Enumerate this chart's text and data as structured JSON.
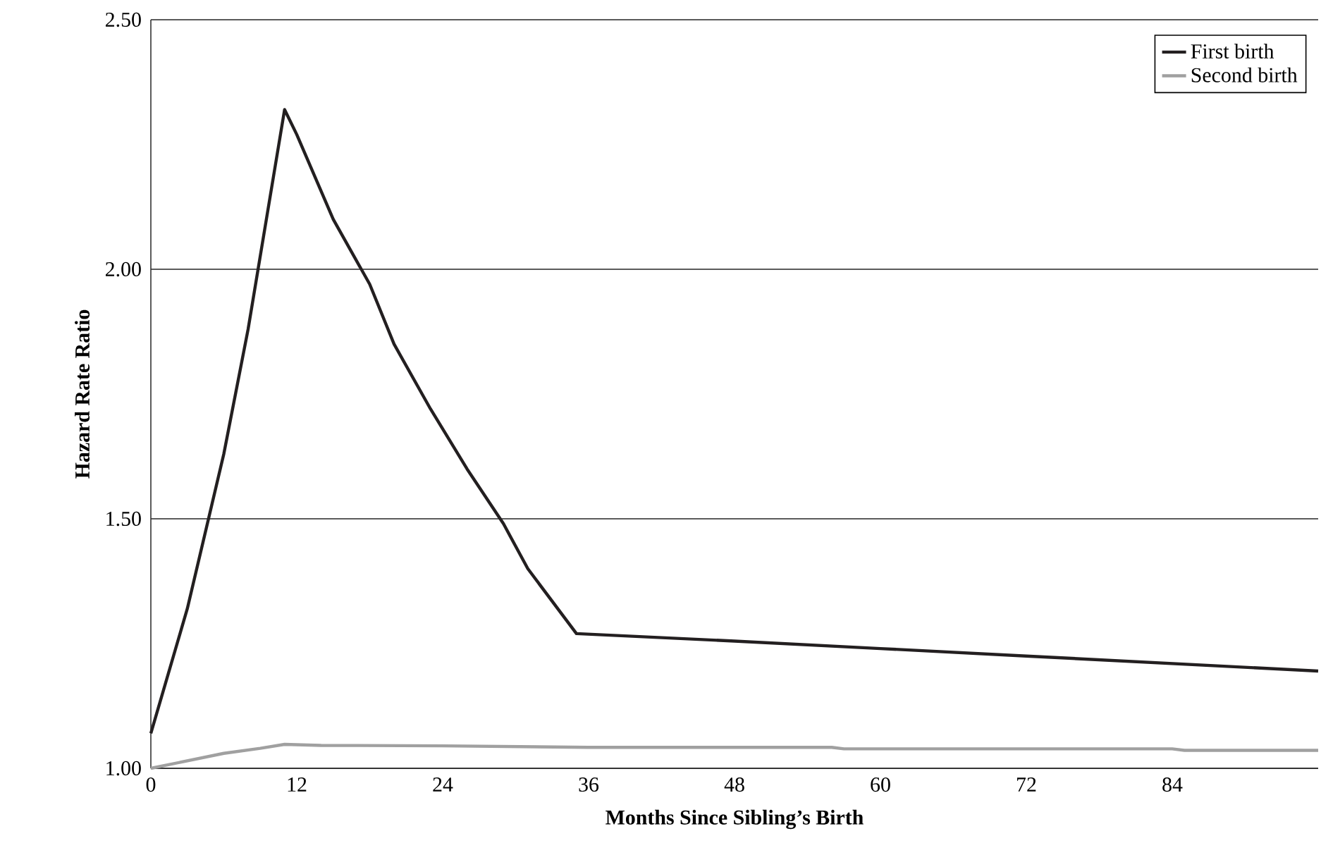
{
  "chart_data": {
    "type": "line",
    "xlabel": "Months Since Sibling’s Birth",
    "ylabel": "Hazard Rate Ratio",
    "xlim": [
      0,
      96
    ],
    "ylim": [
      1,
      2.5
    ],
    "xticks": [
      0,
      12,
      24,
      36,
      48,
      60,
      72,
      84
    ],
    "yticks": [
      {
        "value": 1,
        "label": "1.00"
      },
      {
        "value": 1.5,
        "label": "1.50"
      },
      {
        "value": 2,
        "label": "2.00"
      },
      {
        "value": 2.5,
        "label": "2.50"
      }
    ],
    "grid": "y",
    "legend": "top right",
    "marker": "none",
    "line_style": "solid",
    "series": [
      {
        "name": "First birth",
        "color": "#231f20",
        "x": [
          0,
          3,
          6,
          8,
          11,
          12,
          15,
          18,
          20,
          23,
          26,
          29,
          31,
          35,
          48,
          60,
          72,
          84,
          96
        ],
        "values": [
          1.07,
          1.32,
          1.63,
          1.88,
          2.32,
          2.27,
          2.1,
          1.97,
          1.85,
          1.72,
          1.6,
          1.49,
          1.4,
          1.27,
          1.255,
          1.24,
          1.225,
          1.21,
          1.195
        ]
      },
      {
        "name": "Second birth",
        "color": "#a0a0a0",
        "x": [
          0,
          3,
          6,
          9,
          11,
          14,
          24,
          36,
          56,
          57,
          84,
          85,
          96
        ],
        "values": [
          1.0,
          1.015,
          1.03,
          1.04,
          1.048,
          1.046,
          1.045,
          1.042,
          1.042,
          1.039,
          1.039,
          1.036,
          1.036
        ]
      }
    ]
  }
}
